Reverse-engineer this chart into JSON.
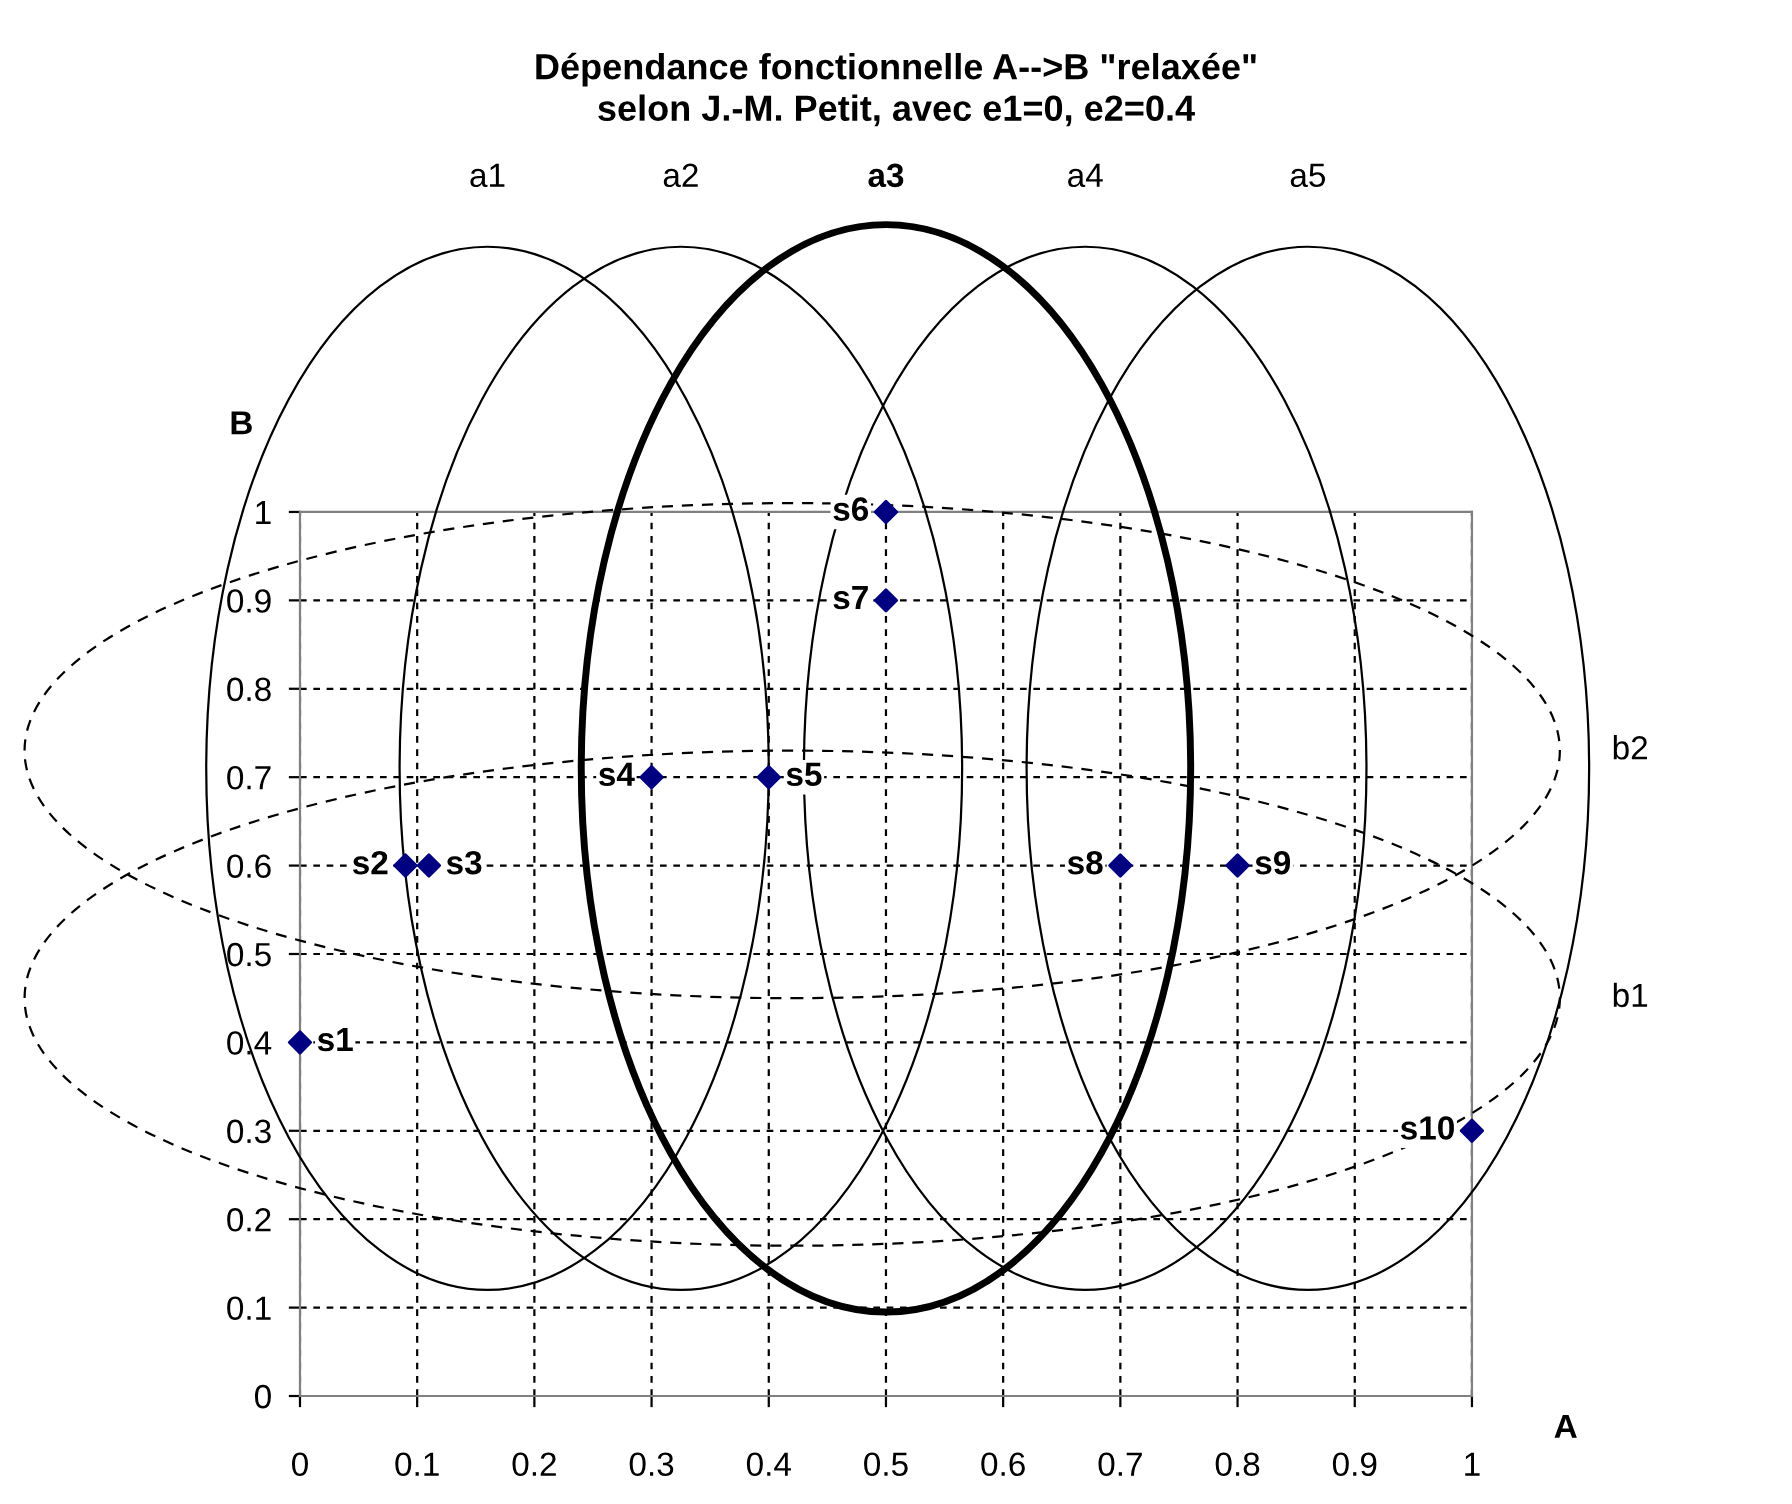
{
  "chart_data": {
    "type": "scatter",
    "title": "Dépendance fonctionnelle A-->B \"relaxée\"\nselon J.-M. Petit, avec e1=0, e2=0.4",
    "xlabel": "A",
    "ylabel": "B",
    "x": [
      0,
      0.09,
      0.11,
      0.3,
      0.4,
      0.5,
      0.5,
      0.7,
      0.8,
      1
    ],
    "series": [
      {
        "color": "#000080",
        "values": [
          0.4,
          0.6,
          0.6,
          0.7,
          0.7,
          1,
          0.9,
          0.6,
          0.6,
          0.3
        ]
      }
    ],
    "marker": "diamond",
    "xlim": [
      0,
      1
    ],
    "ylim": [
      0,
      1
    ],
    "xticks": [
      0,
      0.1,
      0.2,
      0.3,
      0.4,
      0.5,
      0.6,
      0.7,
      0.8,
      0.9,
      1
    ],
    "yticks": [
      0,
      0.1,
      0.2,
      0.3,
      0.4,
      0.5,
      0.6,
      0.7,
      0.8,
      0.9,
      1
    ],
    "grid": true,
    "annotations": [
      {
        "text": "s1",
        "x": 0,
        "y": 0.4
      },
      {
        "text": "s2",
        "x": 0.09,
        "y": 0.6
      },
      {
        "text": "s3",
        "x": 0.11,
        "y": 0.6
      },
      {
        "text": "s4",
        "x": 0.3,
        "y": 0.7
      },
      {
        "text": "s5",
        "x": 0.4,
        "y": 0.7
      },
      {
        "text": "s6",
        "x": 0.5,
        "y": 1
      },
      {
        "text": "s7",
        "x": 0.5,
        "y": 0.9
      },
      {
        "text": "s8",
        "x": 0.7,
        "y": 0.6
      },
      {
        "text": "s9",
        "x": 0.8,
        "y": 0.6
      },
      {
        "text": "s10",
        "x": 1,
        "y": 0.3
      },
      "a1",
      "a2",
      "a3",
      "a4",
      "a5",
      "b2",
      "b1"
    ]
  }
}
